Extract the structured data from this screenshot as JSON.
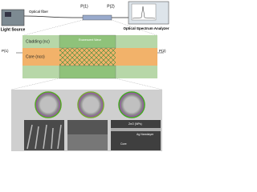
{
  "top": {
    "fiber_label": "Optical fiber",
    "p1": "P(1)",
    "p2": "P(2)",
    "light_source": "Light Source",
    "analyzer": "Optical Spectrum Analyzer"
  },
  "fiber": {
    "cladding": "Cladding (nc)",
    "core": "Core (nco)",
    "p1": "P(1)",
    "p2": "P(2)",
    "evanescent": "Evanescent Wave"
  },
  "sem": {
    "labels": [
      "ZnO (NPs)",
      "Ag Nanolayer",
      "Core"
    ]
  }
}
